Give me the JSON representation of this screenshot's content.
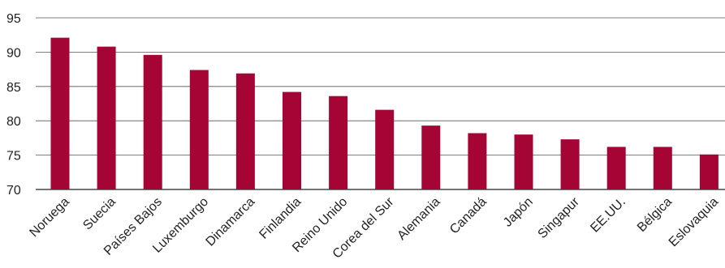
{
  "chart_data": {
    "type": "bar",
    "title": "",
    "xlabel": "",
    "ylabel": "",
    "categories": [
      "Noruega",
      "Suecia",
      "Países Bajos",
      "Luxemburgo",
      "Dinamarca",
      "Finlandia",
      "Reino Unido",
      "Corea del Sur",
      "Alemania",
      "Canadá",
      "Japón",
      "Singapur",
      "EE.UU.",
      "Bélgica",
      "Eslovaquia"
    ],
    "values": [
      92.1,
      90.8,
      89.6,
      87.4,
      86.9,
      84.2,
      83.6,
      81.6,
      79.3,
      78.2,
      78.0,
      77.3,
      76.2,
      76.2,
      75.1
    ],
    "ylim": [
      70,
      95
    ],
    "yticks": [
      "70",
      "75",
      "80",
      "85",
      "90",
      "95"
    ],
    "grid": true,
    "bar_color": "#a50534"
  }
}
